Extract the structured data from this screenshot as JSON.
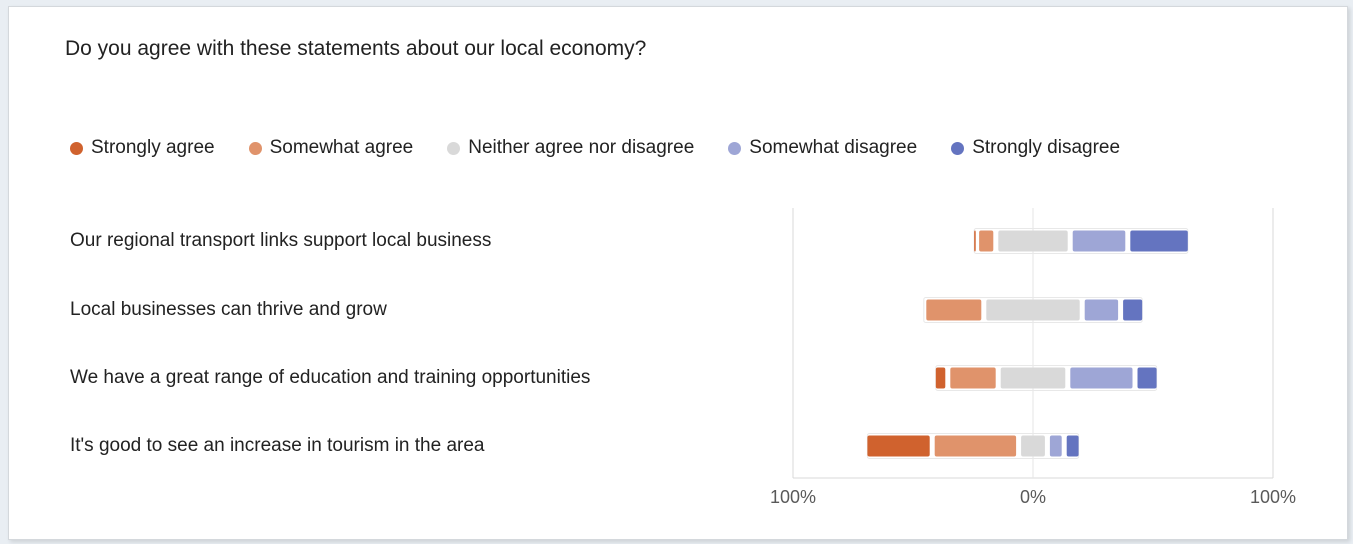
{
  "chart_data": {
    "type": "bar",
    "orientation": "horizontal",
    "stacking": "diverging",
    "title": "Do you agree with these statements about our local economy?",
    "categories": [
      "Our regional transport links support local business",
      "Local businesses can thrive and grow",
      "We have a great range of education and training opportunities",
      "It's good to see an increase in tourism in the area"
    ],
    "series": [
      {
        "name": "Strongly agree",
        "color": "#d0622e",
        "values": [
          1,
          0,
          5,
          27
        ]
      },
      {
        "name": "Somewhat agree",
        "color": "#e0936b",
        "values": [
          8,
          25,
          21,
          36
        ]
      },
      {
        "name": "Neither agree nor disagree",
        "color": "#d9d9d9",
        "values": [
          31,
          41,
          29,
          12
        ]
      },
      {
        "name": "Somewhat disagree",
        "color": "#9ea6d6",
        "values": [
          24,
          16,
          28,
          7
        ]
      },
      {
        "name": "Strongly disagree",
        "color": "#6474c0",
        "values": [
          25,
          9,
          9,
          6
        ]
      }
    ],
    "xlim": [
      -100,
      100
    ],
    "xticks": [
      -100,
      0,
      100
    ],
    "xtick_labels": [
      "100%",
      "0%",
      "100%"
    ],
    "legend_position": "top",
    "grid": false
  }
}
